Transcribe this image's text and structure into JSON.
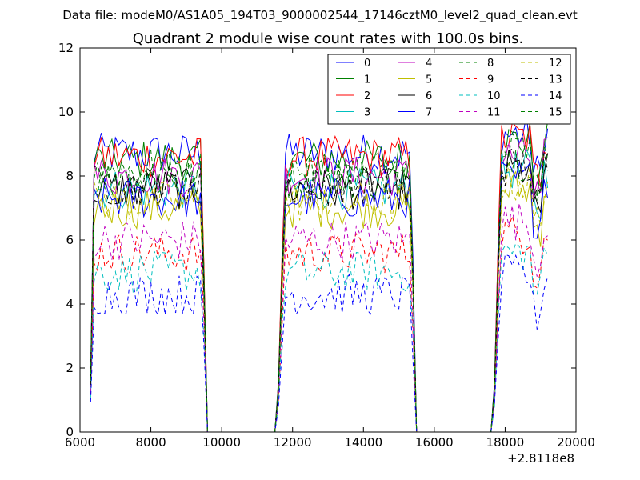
{
  "chart_data": {
    "type": "line",
    "suptitle": "Data file: modeM0/AS1A05_194T03_9000002544_17146cztM0_level2_quad_clean.evt",
    "title": "Quadrant 2 module wise count rates with 100.0s bins.",
    "xlabel": "",
    "ylabel": "",
    "x_offset_label": "+2.8118e8",
    "xlim": [
      6000,
      20000
    ],
    "ylim": [
      0,
      12
    ],
    "xticks": [
      6000,
      8000,
      10000,
      12000,
      14000,
      16000,
      18000,
      20000
    ],
    "xtick_labels": [
      "6000",
      "8000",
      "10000",
      "12000",
      "14000",
      "16000",
      "18000",
      "20000"
    ],
    "yticks": [
      0,
      2,
      4,
      6,
      8,
      10,
      12
    ],
    "ytick_labels": [
      "0",
      "2",
      "4",
      "6",
      "8",
      "10",
      "12"
    ],
    "grid": false,
    "legend_position": "top-right",
    "legend_columns": 4,
    "bin_seconds": 100,
    "segments": [
      {
        "start": 6300,
        "end": 9450
      },
      {
        "start": 11650,
        "end": 15350
      },
      {
        "start": 17750,
        "end": 19200
      }
    ],
    "series": [
      {
        "name": "0",
        "color": "#0000ff",
        "style": "solid",
        "level": 8.7
      },
      {
        "name": "1",
        "color": "#008000",
        "style": "solid",
        "level": 8.5
      },
      {
        "name": "2",
        "color": "#ff0000",
        "style": "solid",
        "level": 8.6
      },
      {
        "name": "3",
        "color": "#00bfbf",
        "style": "solid",
        "level": 7.6
      },
      {
        "name": "4",
        "color": "#bf00bf",
        "style": "solid",
        "level": 8.0
      },
      {
        "name": "5",
        "color": "#bfbf00",
        "style": "solid",
        "level": 7.0
      },
      {
        "name": "6",
        "color": "#000000",
        "style": "solid",
        "level": 7.6
      },
      {
        "name": "7",
        "color": "#0000ff",
        "style": "solid",
        "level": 7.3
      },
      {
        "name": "8",
        "color": "#008000",
        "style": "dashed",
        "level": 7.9
      },
      {
        "name": "9",
        "color": "#ff0000",
        "style": "dashed",
        "level": 5.6
      },
      {
        "name": "10",
        "color": "#00bfbf",
        "style": "dashed",
        "level": 5.0
      },
      {
        "name": "11",
        "color": "#bf00bf",
        "style": "dashed",
        "level": 6.0
      },
      {
        "name": "12",
        "color": "#bfbf00",
        "style": "dashed",
        "level": 7.2
      },
      {
        "name": "13",
        "color": "#000000",
        "style": "dashed",
        "level": 7.7
      },
      {
        "name": "14",
        "color": "#0000ff",
        "style": "dashed",
        "level": 4.3
      },
      {
        "name": "15",
        "color": "#008000",
        "style": "dashed",
        "level": 8.2
      }
    ]
  }
}
